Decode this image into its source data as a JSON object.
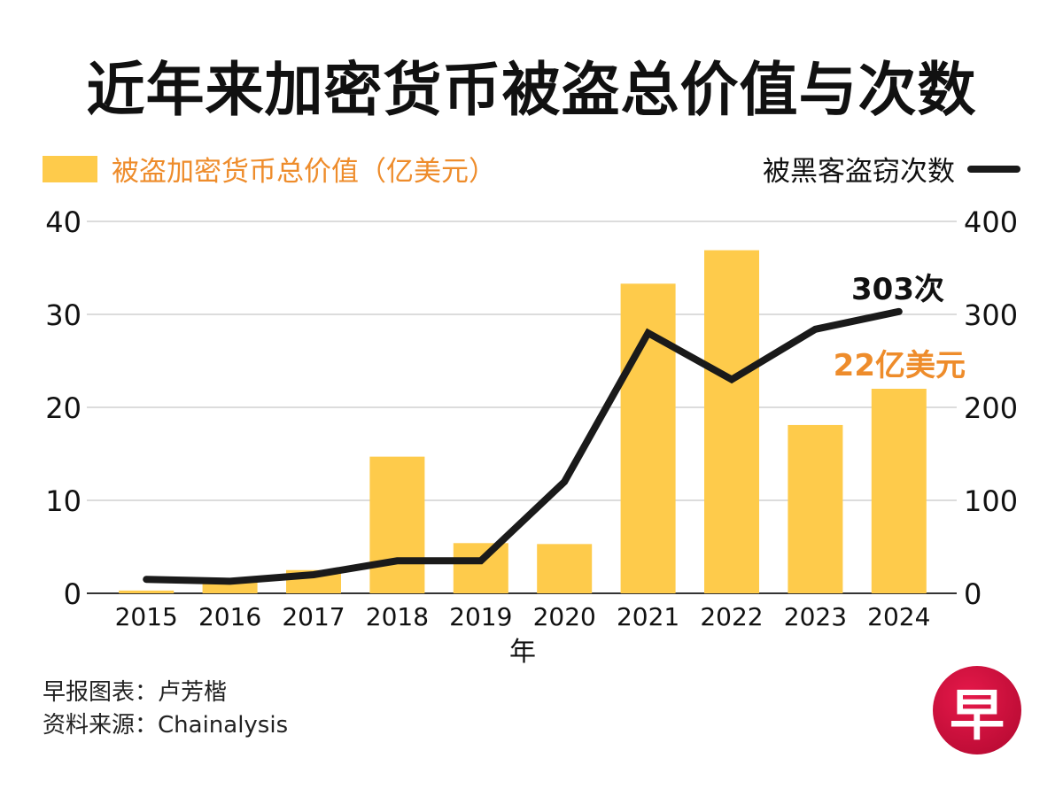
{
  "title": "近年来加密货币被盗总价值与次数",
  "legend": {
    "bars_label": "被盗加密货币总价值（亿美元）",
    "line_label": "被黑客盗窃次数"
  },
  "colors": {
    "bar": "#FECB4B",
    "bar_label": "#EE8C2B",
    "line": "#1a1a1a",
    "grid": "#c8c8c8",
    "axis": "#333333"
  },
  "chart_data": {
    "type": "bar",
    "title": "近年来加密货币被盗总价值与次数",
    "xlabel": "年",
    "ylabel": "被盗加密货币总价值（亿美元）",
    "y2label": "被黑客盗窃次数",
    "categories": [
      "2015",
      "2016",
      "2017",
      "2018",
      "2019",
      "2020",
      "2021",
      "2022",
      "2023",
      "2024"
    ],
    "series": [
      {
        "name": "被盗加密货币总价值（亿美元）",
        "type": "bar",
        "axis": "left",
        "values": [
          0.3,
          1.2,
          2.5,
          14.7,
          5.4,
          5.3,
          33.3,
          36.9,
          18.1,
          22
        ]
      },
      {
        "name": "被黑客盗窃次数",
        "type": "line",
        "axis": "right",
        "values": [
          15,
          13,
          20,
          35,
          35,
          120,
          280,
          230,
          284,
          303
        ]
      }
    ],
    "ylim": [
      0,
      40
    ],
    "y2lim": [
      0,
      400
    ],
    "yticks": [
      0,
      10,
      20,
      30,
      40
    ],
    "y2ticks": [
      0,
      100,
      200,
      300,
      400
    ],
    "grid": true,
    "legend_position": "top",
    "annotations": [
      {
        "text": "303次",
        "series": "被黑客盗窃次数",
        "category": "2024"
      },
      {
        "text": "22亿美元",
        "series": "被盗加密货币总价值（亿美元）",
        "category": "2024"
      }
    ]
  },
  "footer": {
    "credit": "早报图表：卢芳楷",
    "source": "资料来源：Chainalysis"
  },
  "logo": {
    "glyph": "早"
  }
}
